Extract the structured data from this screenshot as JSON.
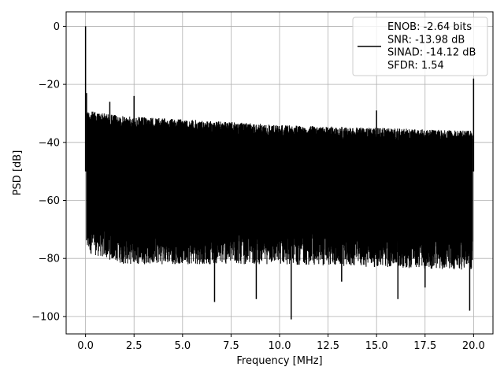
{
  "chart_data": {
    "type": "line",
    "title": "",
    "xlabel": "Frequency [MHz]",
    "ylabel": "PSD [dB]",
    "xlim": [
      -1.0,
      21.0
    ],
    "ylim": [
      -106,
      5
    ],
    "xticks": [
      0.0,
      2.5,
      5.0,
      7.5,
      10.0,
      12.5,
      15.0,
      17.5,
      20.0
    ],
    "xtick_labels": [
      "0.0",
      "2.5",
      "5.0",
      "7.5",
      "10.0",
      "12.5",
      "15.0",
      "17.5",
      "20.0"
    ],
    "yticks": [
      0,
      -20,
      -40,
      -60,
      -80,
      -100
    ],
    "ytick_labels": [
      "0",
      "−20",
      "−40",
      "−60",
      "−80",
      "−100"
    ],
    "grid": true,
    "legend_position": "top-right",
    "legend_lines": [
      "ENOB: -2.64 bits",
      "SNR: -13.98 dB",
      "SINAD: -14.12 dB",
      "SFDR: 1.54"
    ],
    "series": [
      {
        "color": "#000000",
        "style": "dense noise floor",
        "envelope_x": [
          0.05,
          2.0,
          5.0,
          10.0,
          15.0,
          19.95
        ],
        "envelope_upper": [
          -29,
          -31,
          -32,
          -34,
          -35,
          -36
        ],
        "envelope_lower": [
          -78,
          -82,
          -82,
          -82,
          -83,
          -84
        ],
        "spikes": [
          {
            "x": 0.0,
            "y": 0.0
          },
          {
            "x": 0.05,
            "y": -23
          },
          {
            "x": 1.25,
            "y": -26
          },
          {
            "x": 2.5,
            "y": -24
          },
          {
            "x": 15.0,
            "y": -29
          },
          {
            "x": 20.0,
            "y": -18
          },
          {
            "x": 10.6,
            "y": -101
          },
          {
            "x": 6.65,
            "y": -95
          },
          {
            "x": 8.8,
            "y": -94
          },
          {
            "x": 16.1,
            "y": -94
          },
          {
            "x": 19.8,
            "y": -98
          },
          {
            "x": 13.2,
            "y": -88
          },
          {
            "x": 17.5,
            "y": -90
          }
        ]
      }
    ]
  }
}
